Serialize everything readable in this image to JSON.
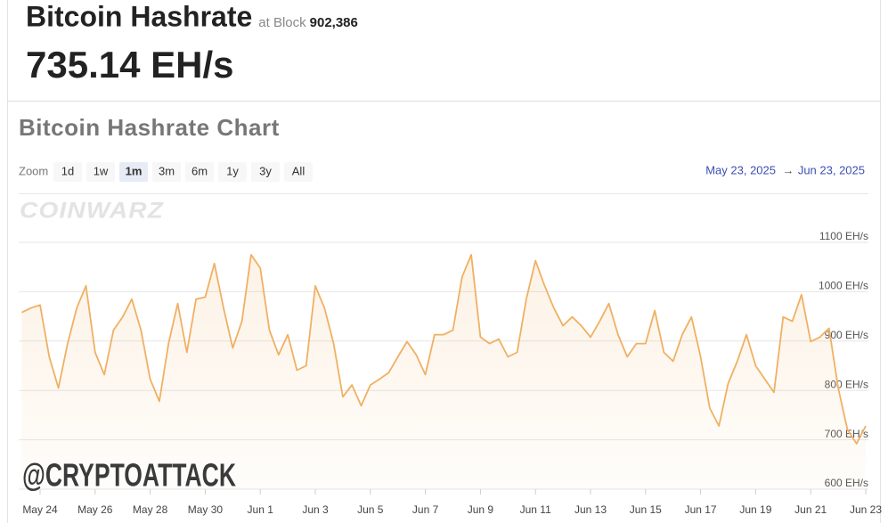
{
  "header": {
    "title": "Bitcoin Hashrate",
    "block_label": "at Block",
    "block_number": "902,386",
    "hashrate": "735.14 EH/s"
  },
  "chart_data": {
    "type": "line",
    "title": "Bitcoin Hashrate Chart",
    "zoom": {
      "label": "Zoom",
      "options": [
        "1d",
        "1w",
        "1m",
        "3m",
        "6m",
        "1y",
        "3y",
        "All"
      ],
      "selected": 2
    },
    "date_range": {
      "start": "May 23, 2025",
      "arrow": "→",
      "end": "Jun 23, 2025"
    },
    "watermarks": [
      "COINWARZ",
      "@CRYPTOATTACK"
    ],
    "categories": [
      null,
      null,
      "May 24",
      null,
      null,
      null,
      null,
      null,
      "May 26",
      null,
      null,
      null,
      null,
      null,
      "May 28",
      null,
      null,
      null,
      null,
      null,
      "May 30",
      null,
      null,
      null,
      null,
      null,
      "Jun 1",
      null,
      null,
      null,
      null,
      null,
      "Jun 3",
      null,
      null,
      null,
      null,
      null,
      "Jun 5",
      null,
      null,
      null,
      null,
      null,
      "Jun 7",
      null,
      null,
      null,
      null,
      null,
      "Jun 9",
      null,
      null,
      null,
      null,
      null,
      "Jun 11",
      null,
      null,
      null,
      null,
      null,
      "Jun 13",
      null,
      null,
      null,
      null,
      null,
      "Jun 15",
      null,
      null,
      null,
      null,
      null,
      "Jun 17",
      null,
      null,
      null,
      null,
      null,
      "Jun 19",
      null,
      null,
      null,
      null,
      null,
      "Jun 21",
      null,
      null,
      null,
      null,
      null,
      "Jun 23"
    ],
    "values": [
      958,
      967,
      973,
      868,
      805,
      895,
      967,
      1012,
      877,
      832,
      922,
      949,
      985,
      922,
      823,
      778,
      895,
      976,
      877,
      985,
      989,
      1057,
      967,
      886,
      940,
      1075,
      1048,
      922,
      872,
      913,
      841,
      850,
      1012,
      967,
      895,
      787,
      811,
      769,
      811,
      823,
      836,
      868,
      899,
      872,
      832,
      913,
      913,
      922,
      1030,
      1075,
      908,
      895,
      904,
      868,
      877,
      985,
      1063,
      1012,
      967,
      931,
      949,
      931,
      908,
      940,
      976,
      913,
      868,
      895,
      895,
      962,
      877,
      859,
      913,
      949,
      868,
      764,
      728,
      814,
      859,
      913,
      850,
      823,
      796,
      949,
      940,
      994,
      899,
      908,
      926,
      805,
      721,
      692,
      728
    ],
    "color": "#f0b063",
    "ylim": [
      600,
      1100
    ],
    "yticks": [
      {
        "value": 600,
        "label": "600 EH/s"
      },
      {
        "value": 700,
        "label": "700 EH/s"
      },
      {
        "value": 800,
        "label": "800 EH/s"
      },
      {
        "value": 900,
        "label": "900 EH/s"
      },
      {
        "value": 1000,
        "label": "1000 EH/s"
      },
      {
        "value": 1100,
        "label": "1100 EH/s"
      }
    ],
    "grid": true
  }
}
